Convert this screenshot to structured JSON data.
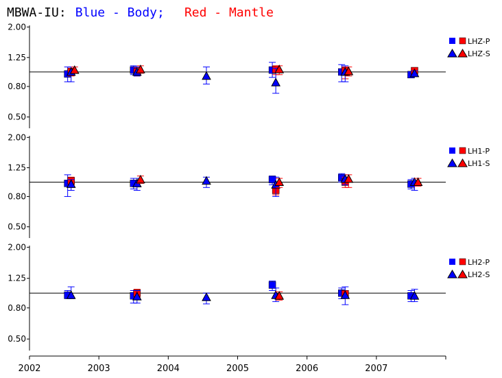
{
  "title": {
    "station": "MBWA-IU:",
    "blue": "Blue - Body;",
    "red": "Red - Mantle"
  },
  "colors": {
    "body": "#0000ff",
    "mantle": "#ff0000",
    "axis": "#000000"
  },
  "chart_data": {
    "type": "scatter",
    "x_ticks": [
      "2002",
      "2003",
      "2004",
      "2005",
      "2006",
      "2007"
    ],
    "xlim": [
      2002,
      2008
    ],
    "y_ticks": [
      "0.50",
      "0.80",
      "1.25",
      "2.00"
    ],
    "ylim": [
      0.42,
      2.05
    ],
    "y_scale": "log",
    "reference_line": 1.0,
    "panels": [
      {
        "channel": "LHZ",
        "legend": [
          "LHZ-P",
          "LHZ-S"
        ],
        "series": [
          {
            "name": "LHZ-P",
            "group": "Blue - Body",
            "marker": "square",
            "points": [
              {
                "x": 2002.55,
                "y": 0.97,
                "lo": 0.86,
                "hi": 1.08
              },
              {
                "x": 2003.5,
                "y": 1.03,
                "lo": 0.96,
                "hi": 1.1
              },
              {
                "x": 2005.5,
                "y": 1.03,
                "lo": 0.92,
                "hi": 1.16
              },
              {
                "x": 2006.5,
                "y": 1.0,
                "lo": 0.86,
                "hi": 1.12
              },
              {
                "x": 2007.5,
                "y": 0.96,
                "lo": 0.92,
                "hi": 1.0
              }
            ]
          },
          {
            "name": "LHZ-P",
            "group": "Red - Mantle",
            "marker": "square",
            "points": [
              {
                "x": 2002.6,
                "y": 1.0,
                "lo": 0.94,
                "hi": 1.06
              },
              {
                "x": 2003.55,
                "y": 1.0,
                "lo": 0.94,
                "hi": 1.07
              },
              {
                "x": 2005.55,
                "y": 1.04,
                "lo": 0.96,
                "hi": 1.1
              },
              {
                "x": 2006.55,
                "y": 1.02,
                "lo": 0.9,
                "hi": 1.08
              },
              {
                "x": 2007.55,
                "y": 1.02,
                "lo": 0.98,
                "hi": 1.06
              }
            ]
          },
          {
            "name": "LHZ-S",
            "group": "Blue - Body",
            "marker": "triangle",
            "points": [
              {
                "x": 2002.6,
                "y": 1.0,
                "lo": 0.86,
                "hi": 1.08
              },
              {
                "x": 2003.55,
                "y": 1.0,
                "lo": 0.94,
                "hi": 1.08
              },
              {
                "x": 2004.55,
                "y": 0.94,
                "lo": 0.83,
                "hi": 1.08
              },
              {
                "x": 2005.55,
                "y": 0.85,
                "lo": 0.72,
                "hi": 1.06
              },
              {
                "x": 2006.55,
                "y": 1.0,
                "lo": 0.86,
                "hi": 1.1
              },
              {
                "x": 2007.55,
                "y": 0.98,
                "lo": 0.94,
                "hi": 1.02
              }
            ]
          },
          {
            "name": "LHZ-S",
            "group": "Red - Mantle",
            "marker": "triangle",
            "points": [
              {
                "x": 2002.65,
                "y": 1.03,
                "lo": 0.98,
                "hi": 1.08
              },
              {
                "x": 2003.6,
                "y": 1.04,
                "lo": 0.98,
                "hi": 1.1
              },
              {
                "x": 2005.6,
                "y": 1.04,
                "lo": 0.96,
                "hi": 1.1
              },
              {
                "x": 2006.6,
                "y": 1.01,
                "lo": 0.94,
                "hi": 1.08
              }
            ]
          }
        ]
      },
      {
        "channel": "LH1",
        "legend": [
          "LH1-P",
          "LH1-S"
        ],
        "series": [
          {
            "name": "LH1-P",
            "group": "Blue - Body",
            "marker": "square",
            "points": [
              {
                "x": 2002.55,
                "y": 0.98,
                "lo": 0.8,
                "hi": 1.12
              },
              {
                "x": 2003.5,
                "y": 0.98,
                "lo": 0.9,
                "hi": 1.06
              },
              {
                "x": 2005.5,
                "y": 1.04,
                "lo": 0.96,
                "hi": 1.1
              },
              {
                "x": 2006.5,
                "y": 1.07,
                "lo": 1.0,
                "hi": 1.14
              },
              {
                "x": 2007.5,
                "y": 0.97,
                "lo": 0.9,
                "hi": 1.04
              }
            ]
          },
          {
            "name": "LH1-P",
            "group": "Red - Mantle",
            "marker": "square",
            "points": [
              {
                "x": 2002.6,
                "y": 1.02,
                "lo": 0.96,
                "hi": 1.08
              },
              {
                "x": 2005.55,
                "y": 0.88,
                "lo": 0.82,
                "hi": 0.94
              },
              {
                "x": 2006.55,
                "y": 1.0,
                "lo": 0.92,
                "hi": 1.08
              }
            ]
          },
          {
            "name": "LH1-S",
            "group": "Blue - Body",
            "marker": "triangle",
            "points": [
              {
                "x": 2002.6,
                "y": 0.97,
                "lo": 0.88,
                "hi": 1.04
              },
              {
                "x": 2003.55,
                "y": 0.98,
                "lo": 0.88,
                "hi": 1.06
              },
              {
                "x": 2004.55,
                "y": 1.02,
                "lo": 0.92,
                "hi": 1.08
              },
              {
                "x": 2005.55,
                "y": 0.96,
                "lo": 0.8,
                "hi": 1.08
              },
              {
                "x": 2006.55,
                "y": 1.05,
                "lo": 0.96,
                "hi": 1.12
              },
              {
                "x": 2007.55,
                "y": 1.0,
                "lo": 0.88,
                "hi": 1.06
              }
            ]
          },
          {
            "name": "LH1-S",
            "group": "Red - Mantle",
            "marker": "triangle",
            "points": [
              {
                "x": 2003.6,
                "y": 1.04,
                "lo": 0.98,
                "hi": 1.1
              },
              {
                "x": 2005.6,
                "y": 1.0,
                "lo": 0.92,
                "hi": 1.06
              },
              {
                "x": 2006.6,
                "y": 1.05,
                "lo": 0.92,
                "hi": 1.12
              },
              {
                "x": 2007.6,
                "y": 1.0,
                "lo": 0.94,
                "hi": 1.06
              }
            ]
          }
        ]
      },
      {
        "channel": "LH2",
        "legend": [
          "LH2-P",
          "LH2-S"
        ],
        "series": [
          {
            "name": "LH2-P",
            "group": "Blue - Body",
            "marker": "square",
            "points": [
              {
                "x": 2002.55,
                "y": 0.97,
                "lo": 0.92,
                "hi": 1.04
              },
              {
                "x": 2003.5,
                "y": 0.96,
                "lo": 0.86,
                "hi": 1.04
              },
              {
                "x": 2005.5,
                "y": 1.13,
                "lo": 1.04,
                "hi": 1.2
              },
              {
                "x": 2006.5,
                "y": 1.0,
                "lo": 0.92,
                "hi": 1.08
              },
              {
                "x": 2007.5,
                "y": 0.96,
                "lo": 0.88,
                "hi": 1.04
              }
            ]
          },
          {
            "name": "LH2-P",
            "group": "Red - Mantle",
            "marker": "square",
            "points": [
              {
                "x": 2003.55,
                "y": 1.0,
                "lo": 0.94,
                "hi": 1.06
              },
              {
                "x": 2006.55,
                "y": 0.99,
                "lo": 0.94,
                "hi": 1.04
              }
            ]
          },
          {
            "name": "LH2-S",
            "group": "Blue - Body",
            "marker": "triangle",
            "points": [
              {
                "x": 2002.6,
                "y": 0.97,
                "lo": 0.92,
                "hi": 1.1
              },
              {
                "x": 2003.55,
                "y": 0.95,
                "lo": 0.86,
                "hi": 1.04
              },
              {
                "x": 2004.55,
                "y": 0.94,
                "lo": 0.85,
                "hi": 1.0
              },
              {
                "x": 2005.55,
                "y": 0.97,
                "lo": 0.88,
                "hi": 1.08
              },
              {
                "x": 2006.55,
                "y": 0.97,
                "lo": 0.84,
                "hi": 1.1
              },
              {
                "x": 2007.55,
                "y": 0.96,
                "lo": 0.88,
                "hi": 1.06
              }
            ]
          },
          {
            "name": "LH2-S",
            "group": "Red - Mantle",
            "marker": "triangle",
            "points": [
              {
                "x": 2005.6,
                "y": 0.96,
                "lo": 0.9,
                "hi": 1.02
              }
            ]
          }
        ]
      }
    ]
  }
}
